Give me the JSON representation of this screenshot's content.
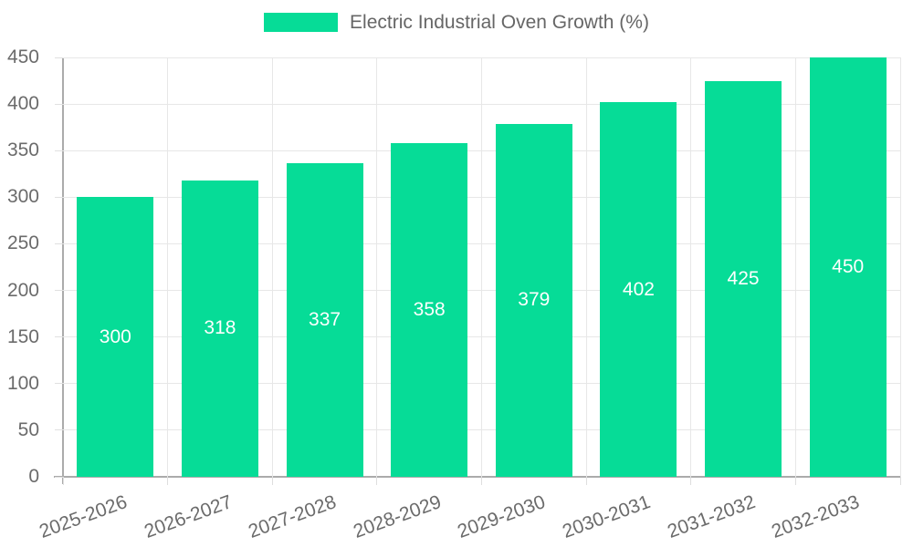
{
  "chart_data": {
    "type": "bar",
    "title": "Electric Industrial Oven Growth (%)",
    "categories": [
      "2025-2026",
      "2026-2027",
      "2027-2028",
      "2028-2029",
      "2029-2030",
      "2030-2031",
      "2031-2032",
      "2032-2033"
    ],
    "values": [
      300,
      318,
      337,
      358,
      379,
      402,
      425,
      450
    ],
    "xlabel": "",
    "ylabel": "",
    "ylim": [
      0,
      450
    ],
    "ytick_step": 50,
    "ytick_labels": [
      "0",
      "50",
      "100",
      "150",
      "200",
      "250",
      "300",
      "350",
      "400",
      "450"
    ],
    "grid": true,
    "legend_position": "top",
    "colors": {
      "bar": "#06dc97",
      "value_label": "#ffffff",
      "grid": "#e7e7e7",
      "axis": "#ababab",
      "tick_text": "#6b6b6b",
      "legend_text": "#666666",
      "background": "#ffffff"
    }
  }
}
